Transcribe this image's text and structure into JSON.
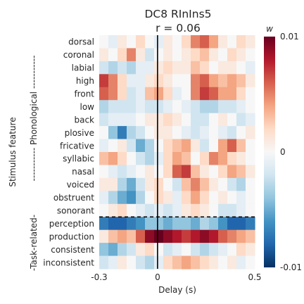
{
  "chart_data": {
    "type": "heatmap",
    "title": "DC8 RInIns5",
    "subtitle": "r = 0.06",
    "xlabel": "Delay (s)",
    "ylabel": "Stimulus feature",
    "xlim": [
      -0.3,
      0.5
    ],
    "x_ticks": [
      {
        "value": -0.3,
        "label": "-0.3"
      },
      {
        "value": 0.0,
        "label": "0"
      },
      {
        "value": 0.5,
        "label": "0.5"
      }
    ],
    "zero_line": 0,
    "group_labels": [
      "----------- Phonological -----------",
      "-Task-related-"
    ],
    "rows": [
      "dorsal",
      "coronal",
      "labial",
      "high",
      "front",
      "low",
      "back",
      "plosive",
      "fricative",
      "syllabic",
      "nasal",
      "voiced",
      "obstruent",
      "sonorant",
      "perception",
      "production",
      "consistent",
      "inconsistent"
    ],
    "separator_after_row": "sonorant",
    "colorbar": {
      "label": "w",
      "min": -0.01,
      "max": 0.01,
      "ticks": [
        {
          "value": 0.01,
          "label": "0.01"
        },
        {
          "value": 0,
          "label": "0"
        },
        {
          "value": -0.01,
          "label": "-0.01"
        }
      ],
      "colormap": "RdBu_r"
    },
    "x_delays": [
      -0.3,
      -0.25,
      -0.2,
      -0.15,
      -0.1,
      -0.05,
      0.0,
      0.05,
      0.1,
      0.15,
      0.2,
      0.25,
      0.3,
      0.35,
      0.4,
      0.45,
      0.5
    ],
    "values": [
      [
        0.0,
        -0.001,
        0.001,
        0.0,
        0.002,
        0.0,
        -0.001,
        0.001,
        0.0,
        0.002,
        0.005,
        0.006,
        0.004,
        0.001,
        0.0,
        0.002,
        0.001
      ],
      [
        0.001,
        0.0,
        0.002,
        0.005,
        0.001,
        -0.002,
        0.0,
        0.001,
        0.0,
        0.001,
        0.002,
        0.003,
        0.001,
        0.0,
        0.002,
        0.001,
        0.0
      ],
      [
        -0.002,
        -0.003,
        -0.002,
        -0.003,
        -0.001,
        -0.001,
        0.001,
        0.002,
        0.001,
        0.001,
        0.003,
        0.002,
        0.0,
        0.001,
        0.001,
        0.0,
        -0.001
      ],
      [
        0.007,
        0.005,
        0.002,
        -0.001,
        -0.001,
        0.001,
        0.002,
        0.001,
        0.0,
        0.0,
        0.005,
        0.006,
        0.004,
        0.003,
        0.004,
        0.003,
        0.001
      ],
      [
        0.006,
        0.005,
        0.002,
        -0.002,
        -0.001,
        0.003,
        0.004,
        0.002,
        -0.001,
        0.0,
        0.005,
        0.007,
        0.006,
        0.004,
        0.004,
        0.002,
        0.0
      ],
      [
        -0.003,
        -0.002,
        -0.002,
        -0.002,
        -0.001,
        -0.002,
        -0.002,
        -0.001,
        0.0,
        -0.001,
        -0.002,
        -0.003,
        -0.003,
        -0.002,
        -0.002,
        -0.001,
        0.0
      ],
      [
        -0.002,
        -0.001,
        -0.001,
        -0.001,
        0.0,
        0.001,
        0.001,
        0.002,
        0.001,
        0.0,
        -0.002,
        -0.002,
        0.0,
        0.001,
        0.0,
        -0.002,
        -0.001
      ],
      [
        0.0,
        -0.004,
        -0.007,
        -0.003,
        -0.002,
        0.0,
        0.001,
        0.001,
        0.0,
        -0.001,
        -0.002,
        -0.001,
        0.0,
        -0.001,
        -0.002,
        0.0,
        0.001
      ],
      [
        -0.001,
        0.0,
        0.001,
        -0.002,
        -0.005,
        -0.003,
        0.0,
        0.002,
        0.003,
        0.004,
        0.001,
        -0.002,
        0.0,
        0.004,
        0.006,
        0.003,
        0.0
      ],
      [
        0.003,
        0.004,
        0.002,
        0.0,
        -0.002,
        -0.003,
        -0.001,
        0.002,
        0.004,
        0.003,
        0.0,
        0.002,
        0.005,
        0.004,
        0.002,
        0.001,
        0.0
      ],
      [
        0.0,
        -0.001,
        -0.002,
        -0.001,
        0.0,
        0.001,
        0.0,
        0.002,
        0.006,
        0.007,
        0.003,
        0.001,
        0.0,
        0.002,
        0.004,
        0.003,
        0.001
      ],
      [
        0.001,
        0.001,
        -0.003,
        -0.005,
        -0.002,
        0.001,
        0.002,
        0.0,
        -0.002,
        0.003,
        0.005,
        0.003,
        0.001,
        0.0,
        -0.002,
        -0.003,
        0.0
      ],
      [
        -0.001,
        -0.003,
        -0.005,
        -0.006,
        -0.003,
        0.0,
        0.002,
        0.001,
        -0.001,
        0.002,
        0.004,
        0.002,
        0.0,
        0.001,
        0.0,
        -0.001,
        0.0
      ],
      [
        0.0,
        0.001,
        0.002,
        0.0,
        -0.001,
        -0.002,
        -0.001,
        -0.002,
        -0.001,
        0.001,
        0.002,
        0.001,
        0.0,
        -0.002,
        -0.002,
        -0.001,
        0.0
      ],
      [
        -0.007,
        -0.008,
        -0.008,
        -0.007,
        -0.006,
        -0.004,
        -0.004,
        -0.005,
        -0.004,
        -0.004,
        -0.005,
        -0.003,
        -0.004,
        -0.006,
        -0.008,
        -0.008,
        -0.007
      ],
      [
        0.001,
        0.003,
        0.004,
        0.003,
        0.006,
        0.009,
        0.01,
        0.009,
        0.008,
        0.007,
        0.008,
        0.009,
        0.008,
        0.006,
        0.005,
        0.004,
        0.003
      ],
      [
        -0.004,
        -0.005,
        -0.003,
        -0.002,
        0.001,
        0.002,
        0.0,
        -0.002,
        -0.001,
        0.0,
        -0.002,
        -0.003,
        -0.002,
        -0.001,
        0.0,
        0.002,
        0.001
      ],
      [
        -0.002,
        -0.001,
        0.001,
        0.0,
        -0.002,
        -0.003,
        -0.001,
        0.002,
        0.003,
        0.004,
        0.003,
        0.002,
        0.001,
        0.0,
        0.001,
        -0.001,
        0.0
      ]
    ]
  }
}
